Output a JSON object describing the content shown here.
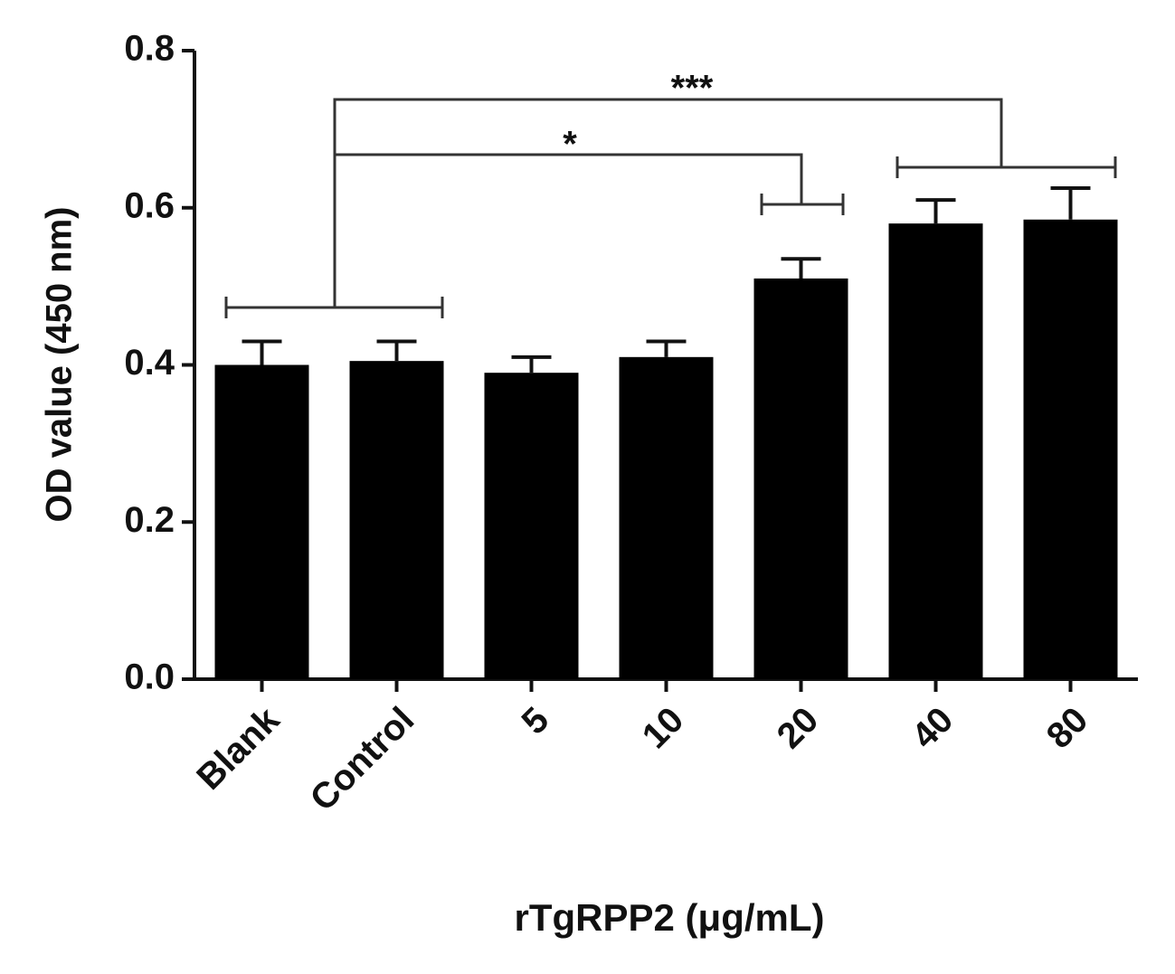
{
  "chart_data": {
    "type": "bar",
    "x_label": "rTgRPP2 (μg/mL)",
    "y_label": "OD value (450 nm)",
    "categories": [
      "Blank",
      "Control",
      "5",
      "10",
      "20",
      "40",
      "80"
    ],
    "series": [
      {
        "color": "#000000",
        "values": [
          0.4,
          0.405,
          0.39,
          0.41,
          0.51,
          0.58,
          0.585
        ],
        "errors": [
          0.03,
          0.025,
          0.02,
          0.02,
          0.025,
          0.03,
          0.04
        ]
      }
    ],
    "ylim": [
      0,
      0.8
    ],
    "yticks": [
      {
        "value": 0,
        "label": "0.0"
      },
      0.2,
      0.4,
      0.6,
      0.8
    ],
    "annotations": [
      "***",
      "*"
    ]
  }
}
